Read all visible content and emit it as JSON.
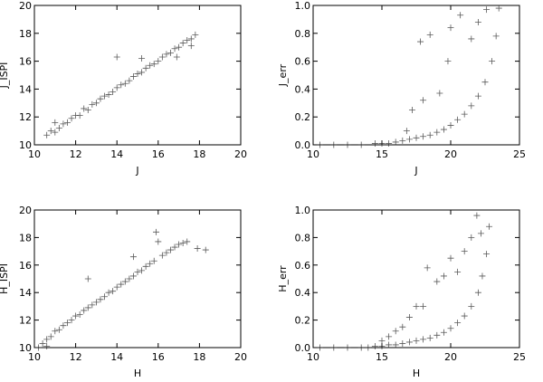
{
  "chart_data": [
    {
      "type": "scatter",
      "marker": "plus",
      "xlabel": "J",
      "ylabel": "J_ISPI",
      "xlim": [
        10,
        20
      ],
      "ylim": [
        10,
        20
      ],
      "xticks": [
        "10",
        "12",
        "14",
        "16",
        "18",
        "20"
      ],
      "yticks": [
        "10",
        "12",
        "14",
        "16",
        "18",
        "20"
      ],
      "grid": false,
      "series": [
        {
          "points": [
            [
              10.6,
              10.7
            ],
            [
              10.8,
              11.0
            ],
            [
              11.0,
              10.9
            ],
            [
              11.0,
              11.6
            ],
            [
              11.2,
              11.2
            ],
            [
              11.4,
              11.5
            ],
            [
              11.6,
              11.6
            ],
            [
              11.8,
              11.9
            ],
            [
              12.0,
              12.1
            ],
            [
              12.2,
              12.1
            ],
            [
              12.4,
              12.6
            ],
            [
              12.6,
              12.5
            ],
            [
              12.8,
              12.9
            ],
            [
              13.0,
              13.0
            ],
            [
              13.2,
              13.3
            ],
            [
              13.4,
              13.5
            ],
            [
              13.6,
              13.6
            ],
            [
              13.8,
              13.8
            ],
            [
              14.0,
              14.1
            ],
            [
              14.0,
              16.3
            ],
            [
              14.2,
              14.3
            ],
            [
              14.4,
              14.4
            ],
            [
              14.6,
              14.6
            ],
            [
              14.8,
              14.9
            ],
            [
              15.0,
              15.1
            ],
            [
              15.2,
              15.2
            ],
            [
              15.2,
              16.2
            ],
            [
              15.4,
              15.5
            ],
            [
              15.6,
              15.7
            ],
            [
              15.8,
              15.8
            ],
            [
              16.0,
              16.0
            ],
            [
              16.2,
              16.3
            ],
            [
              16.4,
              16.5
            ],
            [
              16.6,
              16.6
            ],
            [
              16.8,
              16.9
            ],
            [
              17.0,
              17.0
            ],
            [
              17.2,
              17.3
            ],
            [
              17.4,
              17.5
            ],
            [
              17.6,
              17.6
            ],
            [
              17.8,
              17.9
            ],
            [
              17.6,
              17.1
            ],
            [
              16.9,
              16.3
            ]
          ]
        }
      ]
    },
    {
      "type": "scatter",
      "marker": "plus",
      "xlabel": "J",
      "ylabel": "J_err",
      "xlim": [
        10,
        25
      ],
      "ylim": [
        0,
        1
      ],
      "xticks": [
        "10",
        "15",
        "20",
        "25"
      ],
      "yticks": [
        "0.0",
        "0.2",
        "0.4",
        "0.6",
        "0.8",
        "1.0"
      ],
      "grid": false,
      "series": [
        {
          "points": [
            [
              10.5,
              0.0
            ],
            [
              11.5,
              0.0
            ],
            [
              12.5,
              0.0
            ],
            [
              13.5,
              0.0
            ],
            [
              14.5,
              0.01
            ],
            [
              15.0,
              0.01
            ],
            [
              15.5,
              0.01
            ],
            [
              16.0,
              0.02
            ],
            [
              16.5,
              0.03
            ],
            [
              17.0,
              0.04
            ],
            [
              17.5,
              0.05
            ],
            [
              18.0,
              0.06
            ],
            [
              18.5,
              0.07
            ],
            [
              19.0,
              0.09
            ],
            [
              19.5,
              0.11
            ],
            [
              20.0,
              0.14
            ],
            [
              20.5,
              0.18
            ],
            [
              21.0,
              0.22
            ],
            [
              21.5,
              0.28
            ],
            [
              22.0,
              0.35
            ],
            [
              22.5,
              0.45
            ],
            [
              23.0,
              0.6
            ],
            [
              23.3,
              0.78
            ],
            [
              23.5,
              0.98
            ],
            [
              16.8,
              0.1
            ],
            [
              17.2,
              0.25
            ],
            [
              17.8,
              0.74
            ],
            [
              18.0,
              0.32
            ],
            [
              18.5,
              0.79
            ],
            [
              19.2,
              0.37
            ],
            [
              19.8,
              0.6
            ],
            [
              20.0,
              0.84
            ],
            [
              20.7,
              0.93
            ],
            [
              21.5,
              0.76
            ],
            [
              22.0,
              0.88
            ],
            [
              22.6,
              0.97
            ]
          ]
        }
      ]
    },
    {
      "type": "scatter",
      "marker": "plus",
      "xlabel": "H",
      "ylabel": "H_ISPI",
      "xlim": [
        10,
        20
      ],
      "ylim": [
        10,
        20
      ],
      "xticks": [
        "10",
        "12",
        "14",
        "16",
        "18",
        "20"
      ],
      "yticks": [
        "10",
        "12",
        "14",
        "16",
        "18",
        "20"
      ],
      "grid": false,
      "series": [
        {
          "points": [
            [
              10.2,
              10.0
            ],
            [
              10.4,
              10.3
            ],
            [
              10.6,
              10.6
            ],
            [
              10.8,
              10.8
            ],
            [
              11.0,
              11.2
            ],
            [
              11.2,
              11.3
            ],
            [
              11.4,
              11.6
            ],
            [
              11.6,
              11.8
            ],
            [
              11.8,
              12.0
            ],
            [
              12.0,
              12.3
            ],
            [
              12.2,
              12.4
            ],
            [
              12.4,
              12.7
            ],
            [
              12.6,
              12.9
            ],
            [
              12.6,
              15.0
            ],
            [
              12.8,
              13.1
            ],
            [
              13.0,
              13.3
            ],
            [
              13.2,
              13.5
            ],
            [
              13.4,
              13.7
            ],
            [
              13.6,
              14.0
            ],
            [
              13.8,
              14.1
            ],
            [
              14.0,
              14.4
            ],
            [
              14.2,
              14.6
            ],
            [
              14.4,
              14.8
            ],
            [
              14.6,
              15.0
            ],
            [
              14.8,
              15.2
            ],
            [
              14.8,
              16.6
            ],
            [
              15.0,
              15.5
            ],
            [
              15.2,
              15.6
            ],
            [
              15.4,
              15.9
            ],
            [
              15.6,
              16.1
            ],
            [
              15.8,
              16.3
            ],
            [
              15.9,
              18.4
            ],
            [
              16.0,
              17.7
            ],
            [
              16.2,
              16.7
            ],
            [
              16.4,
              16.9
            ],
            [
              16.6,
              17.1
            ],
            [
              16.8,
              17.3
            ],
            [
              17.0,
              17.5
            ],
            [
              17.2,
              17.6
            ],
            [
              17.4,
              17.7
            ],
            [
              17.9,
              17.2
            ],
            [
              18.3,
              17.1
            ],
            [
              10.6,
              10.1
            ]
          ]
        }
      ]
    },
    {
      "type": "scatter",
      "marker": "plus",
      "xlabel": "H",
      "ylabel": "H_err",
      "xlim": [
        10,
        25
      ],
      "ylim": [
        0,
        1
      ],
      "xticks": [
        "10",
        "15",
        "20",
        "25"
      ],
      "yticks": [
        "0.0",
        "0.2",
        "0.4",
        "0.6",
        "0.8",
        "1.0"
      ],
      "grid": false,
      "series": [
        {
          "points": [
            [
              10.5,
              0.0
            ],
            [
              11.5,
              0.0
            ],
            [
              12.5,
              0.0
            ],
            [
              13.5,
              0.0
            ],
            [
              14.0,
              0.0
            ],
            [
              14.5,
              0.01
            ],
            [
              15.0,
              0.01
            ],
            [
              15.5,
              0.02
            ],
            [
              16.0,
              0.02
            ],
            [
              16.5,
              0.03
            ],
            [
              17.0,
              0.04
            ],
            [
              17.5,
              0.05
            ],
            [
              18.0,
              0.06
            ],
            [
              18.5,
              0.07
            ],
            [
              19.0,
              0.09
            ],
            [
              19.5,
              0.11
            ],
            [
              20.0,
              0.14
            ],
            [
              20.5,
              0.18
            ],
            [
              21.0,
              0.23
            ],
            [
              21.5,
              0.3
            ],
            [
              22.0,
              0.4
            ],
            [
              22.3,
              0.52
            ],
            [
              22.6,
              0.68
            ],
            [
              22.8,
              0.88
            ],
            [
              15.0,
              0.05
            ],
            [
              15.5,
              0.08
            ],
            [
              16.0,
              0.12
            ],
            [
              16.5,
              0.15
            ],
            [
              17.0,
              0.22
            ],
            [
              17.5,
              0.3
            ],
            [
              18.0,
              0.3
            ],
            [
              18.3,
              0.58
            ],
            [
              19.0,
              0.48
            ],
            [
              19.5,
              0.52
            ],
            [
              20.0,
              0.65
            ],
            [
              20.5,
              0.55
            ],
            [
              21.0,
              0.7
            ],
            [
              21.5,
              0.8
            ],
            [
              21.9,
              0.96
            ],
            [
              22.2,
              0.83
            ]
          ]
        }
      ]
    }
  ]
}
